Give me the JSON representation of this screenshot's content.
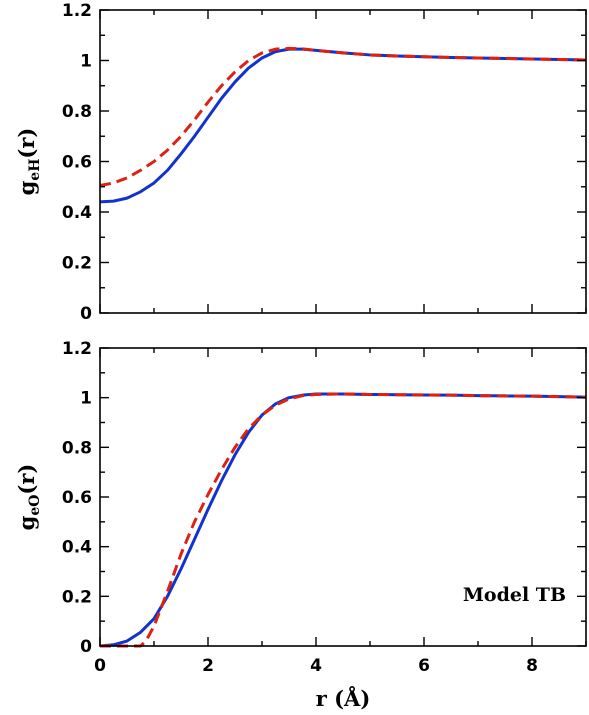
{
  "chart_data": [
    {
      "type": "line",
      "panel": "top",
      "ylabel": "g",
      "ylabel_sub": "eH",
      "ylabel_suffix": "(r)",
      "xlim": [
        0,
        9
      ],
      "ylim": [
        0,
        1.2
      ],
      "xticks": [
        0,
        2,
        4,
        6,
        8
      ],
      "xtick_labels": [
        "0",
        "2",
        "4",
        "6",
        "8"
      ],
      "show_xtick_labels": false,
      "yticks": [
        0,
        0.2,
        0.4,
        0.6,
        0.8,
        1,
        1.2
      ],
      "ytick_labels": [
        "0",
        "0.2",
        "0.4",
        "0.6",
        "0.8",
        "1",
        "1.2"
      ],
      "grid": false,
      "series": [
        {
          "style": "solid",
          "color": "#1133cc",
          "x": [
            0,
            0.25,
            0.5,
            0.75,
            1.0,
            1.25,
            1.5,
            1.75,
            2.0,
            2.25,
            2.5,
            2.75,
            3.0,
            3.25,
            3.5,
            3.75,
            4.0,
            4.5,
            5.0,
            5.5,
            6.0,
            6.5,
            7.0,
            7.5,
            8.0,
            8.5,
            9.0
          ],
          "y": [
            0.44,
            0.443,
            0.455,
            0.48,
            0.515,
            0.565,
            0.63,
            0.7,
            0.775,
            0.85,
            0.915,
            0.97,
            1.01,
            1.035,
            1.045,
            1.045,
            1.04,
            1.03,
            1.022,
            1.018,
            1.015,
            1.012,
            1.01,
            1.008,
            1.006,
            1.004,
            1.002
          ]
        },
        {
          "style": "dashed",
          "color": "#dd2211",
          "x": [
            0,
            0.25,
            0.5,
            0.75,
            1.0,
            1.25,
            1.5,
            1.75,
            2.0,
            2.25,
            2.5,
            2.75,
            3.0,
            3.25,
            3.5,
            3.75,
            4.0,
            4.5,
            5.0,
            5.5,
            6.0,
            6.5,
            7.0,
            7.5,
            8.0,
            8.5,
            9.0
          ],
          "y": [
            0.505,
            0.515,
            0.535,
            0.565,
            0.6,
            0.645,
            0.7,
            0.765,
            0.835,
            0.9,
            0.955,
            1.0,
            1.03,
            1.045,
            1.048,
            1.046,
            1.04,
            1.03,
            1.022,
            1.018,
            1.015,
            1.012,
            1.01,
            1.008,
            1.006,
            1.004,
            1.002
          ]
        }
      ]
    },
    {
      "type": "line",
      "panel": "bottom",
      "ylabel": "g",
      "ylabel_sub": "eO",
      "ylabel_suffix": "(r)",
      "xlabel": "r (Å)",
      "annotation": "Model TB",
      "xlim": [
        0,
        9
      ],
      "ylim": [
        0,
        1.2
      ],
      "xticks": [
        0,
        2,
        4,
        6,
        8
      ],
      "xtick_labels": [
        "0",
        "2",
        "4",
        "6",
        "8"
      ],
      "show_xtick_labels": true,
      "yticks": [
        0,
        0.2,
        0.4,
        0.6,
        0.8,
        1,
        1.2
      ],
      "ytick_labels": [
        "0",
        "0.2",
        "0.4",
        "0.6",
        "0.8",
        "1",
        "1.2"
      ],
      "grid": false,
      "series": [
        {
          "style": "solid",
          "color": "#1133cc",
          "x": [
            0,
            0.25,
            0.5,
            0.75,
            1.0,
            1.25,
            1.5,
            1.75,
            2.0,
            2.25,
            2.5,
            2.75,
            3.0,
            3.25,
            3.5,
            3.75,
            4.0,
            4.5,
            5.0,
            5.5,
            6.0,
            6.5,
            7.0,
            7.5,
            8.0,
            8.5,
            9.0
          ],
          "y": [
            0.0,
            0.005,
            0.02,
            0.055,
            0.11,
            0.2,
            0.31,
            0.43,
            0.55,
            0.665,
            0.77,
            0.86,
            0.93,
            0.975,
            1.0,
            1.01,
            1.015,
            1.015,
            1.013,
            1.012,
            1.011,
            1.01,
            1.008,
            1.007,
            1.006,
            1.004,
            1.002
          ]
        },
        {
          "style": "dashed",
          "color": "#dd2211",
          "x": [
            0,
            0.25,
            0.5,
            0.75,
            0.85,
            1.0,
            1.25,
            1.5,
            1.75,
            2.0,
            2.25,
            2.5,
            2.75,
            3.0,
            3.25,
            3.5,
            3.75,
            4.0,
            4.5,
            5.0,
            5.5,
            6.0,
            6.5,
            7.0,
            7.5,
            8.0,
            8.5,
            9.0
          ],
          "y": [
            0.0,
            0.0,
            0.0,
            0.0,
            0.02,
            0.08,
            0.22,
            0.37,
            0.5,
            0.61,
            0.71,
            0.8,
            0.875,
            0.93,
            0.97,
            0.995,
            1.008,
            1.013,
            1.015,
            1.013,
            1.012,
            1.011,
            1.01,
            1.008,
            1.007,
            1.006,
            1.004,
            1.002
          ]
        }
      ]
    }
  ]
}
